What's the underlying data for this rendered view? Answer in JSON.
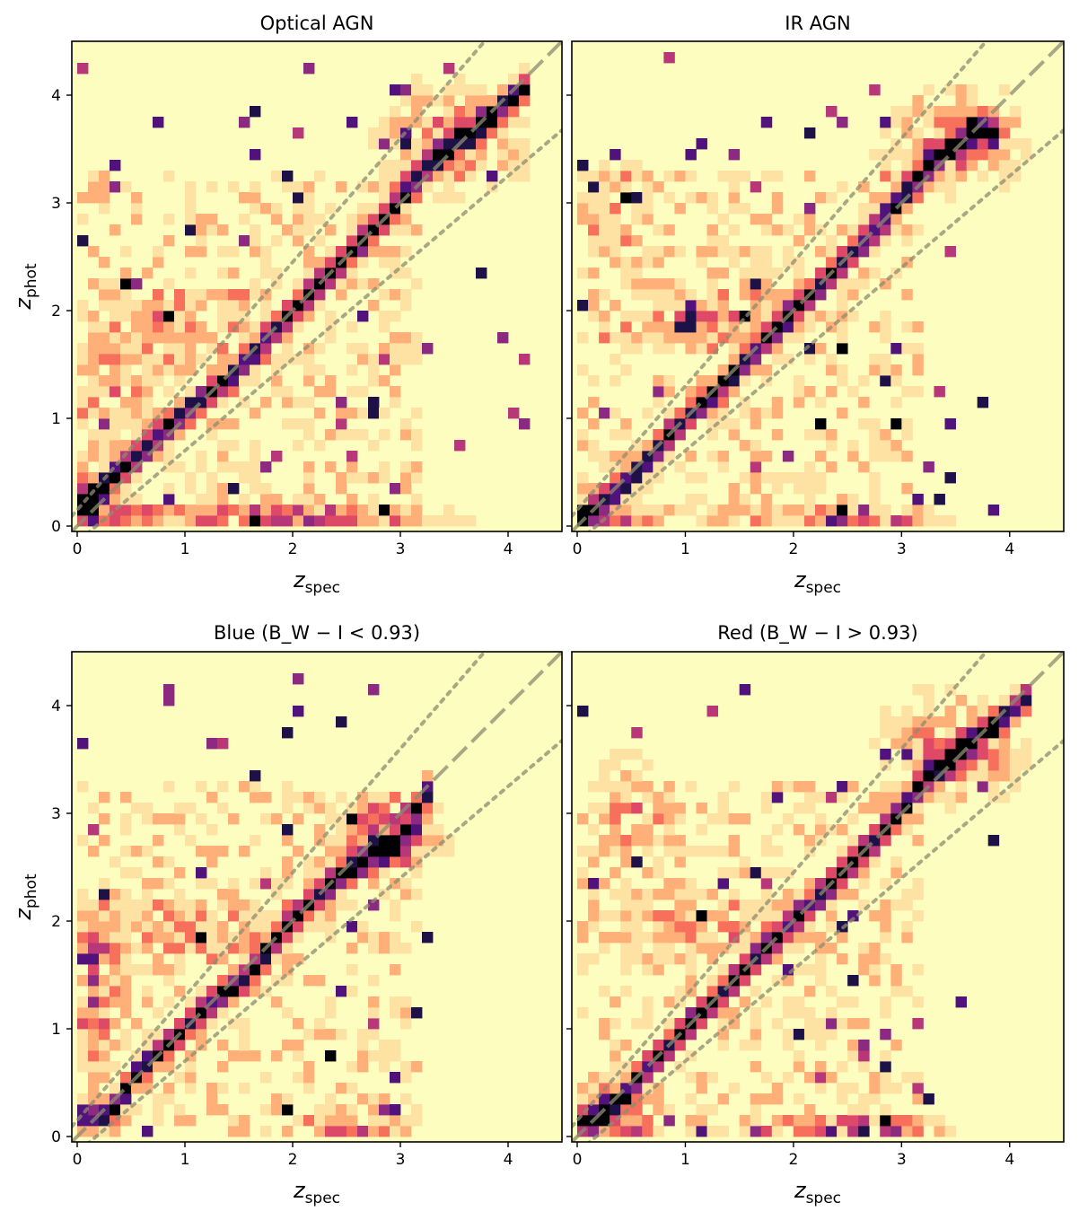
{
  "figure": {
    "shared_xlabel": "z",
    "shared_xlabel_sub": "spec",
    "shared_ylabel": "z",
    "shared_ylabel_sub": "phot",
    "colors": {
      "background": "#fcfdbf",
      "dashed_line": "#8c8c70",
      "dotted_line": "#8c8c70",
      "cmap": [
        "#fcfdbf",
        "#fde2a3",
        "#feb078",
        "#f7705c",
        "#de4968",
        "#b73779",
        "#8c2981",
        "#51127c",
        "#1d1147",
        "#000004"
      ]
    }
  },
  "chart_data": [
    {
      "type": "heatmap",
      "title": "Optical AGN",
      "xlabel": "z_spec",
      "ylabel": "z_phot",
      "xlim": [
        -0.05,
        4.5
      ],
      "ylim": [
        -0.05,
        4.5
      ],
      "xticks": [
        "0",
        "1",
        "2",
        "3",
        "4"
      ],
      "yticks": [
        "0",
        "1",
        "2",
        "3",
        "4"
      ],
      "bin_width": 0.1,
      "reference_lines": {
        "one_to_one": "dashed",
        "outlier_bounds": "dotted"
      },
      "seed": 11,
      "ridge": [
        [
          0.0,
          0.15
        ],
        [
          0.5,
          0.6
        ],
        [
          1.0,
          1.05
        ],
        [
          1.5,
          1.45
        ],
        [
          1.9,
          1.9
        ],
        [
          2.3,
          2.3
        ],
        [
          2.8,
          2.8
        ],
        [
          3.3,
          3.4
        ],
        [
          3.7,
          3.7
        ],
        [
          4.2,
          4.1
        ]
      ],
      "clumps": [
        [
          0.1,
          0.25,
          0.15,
          0.15,
          1.0
        ],
        [
          0.7,
          0.1,
          1.5,
          0.08,
          0.5
        ],
        [
          2.2,
          0.05,
          0.6,
          0.08,
          0.6
        ],
        [
          1.0,
          1.9,
          0.6,
          0.2,
          0.35
        ],
        [
          3.5,
          3.6,
          0.4,
          0.3,
          0.6
        ],
        [
          0.4,
          1.3,
          0.3,
          0.3,
          0.3
        ]
      ]
    },
    {
      "type": "heatmap",
      "title": "IR AGN",
      "xlabel": "z_spec",
      "ylabel": "z_phot",
      "xlim": [
        -0.05,
        4.5
      ],
      "ylim": [
        -0.05,
        4.5
      ],
      "xticks": [
        "0",
        "1",
        "2",
        "3",
        "4"
      ],
      "yticks": [
        "0",
        "1",
        "2",
        "3",
        "4"
      ],
      "bin_width": 0.1,
      "reference_lines": {
        "one_to_one": "dashed",
        "outlier_bounds": "dotted"
      },
      "seed": 23,
      "ridge": [
        [
          0.0,
          0.05
        ],
        [
          0.5,
          0.45
        ],
        [
          1.0,
          1.0
        ],
        [
          1.5,
          1.45
        ],
        [
          1.9,
          1.9
        ],
        [
          2.3,
          2.3
        ],
        [
          2.8,
          2.8
        ],
        [
          3.3,
          3.4
        ],
        [
          3.7,
          3.7
        ],
        [
          3.9,
          3.6
        ]
      ],
      "clumps": [
        [
          0.2,
          0.05,
          0.3,
          0.08,
          1.0
        ],
        [
          2.4,
          0.05,
          0.6,
          0.08,
          0.7
        ],
        [
          1.2,
          1.9,
          0.6,
          0.2,
          0.35
        ],
        [
          3.5,
          3.6,
          0.4,
          0.3,
          0.6
        ],
        [
          0.3,
          3.0,
          0.3,
          0.3,
          0.25
        ]
      ]
    },
    {
      "type": "heatmap",
      "title": "Blue (B_W − I < 0.93)",
      "xlabel": "z_spec",
      "ylabel": "z_phot",
      "xlim": [
        -0.05,
        4.5
      ],
      "ylim": [
        -0.05,
        4.5
      ],
      "xticks": [
        "0",
        "1",
        "2",
        "3",
        "4"
      ],
      "yticks": [
        "0",
        "1",
        "2",
        "3",
        "4"
      ],
      "bin_width": 0.1,
      "reference_lines": {
        "one_to_one": "dashed",
        "outlier_bounds": "dotted"
      },
      "seed": 37,
      "ridge": [
        [
          0.3,
          0.2
        ],
        [
          0.6,
          0.65
        ],
        [
          0.9,
          0.9
        ],
        [
          1.3,
          1.3
        ],
        [
          1.6,
          1.5
        ],
        [
          1.9,
          1.9
        ],
        [
          2.3,
          2.3
        ],
        [
          2.7,
          2.6
        ],
        [
          3.0,
          2.75
        ],
        [
          3.3,
          3.3
        ]
      ],
      "clumps": [
        [
          0.15,
          1.5,
          0.15,
          0.4,
          0.7
        ],
        [
          2.5,
          0.05,
          0.4,
          0.08,
          0.6
        ],
        [
          1.0,
          1.9,
          0.6,
          0.2,
          0.35
        ],
        [
          2.9,
          2.8,
          0.3,
          0.2,
          0.8
        ]
      ]
    },
    {
      "type": "heatmap",
      "title": "Red (B_W − I > 0.93)",
      "xlabel": "z_spec",
      "ylabel": "z_phot",
      "xlim": [
        -0.05,
        4.5
      ],
      "ylim": [
        -0.05,
        4.5
      ],
      "xticks": [
        "0",
        "1",
        "2",
        "3",
        "4"
      ],
      "yticks": [
        "0",
        "1",
        "2",
        "3",
        "4"
      ],
      "bin_width": 0.1,
      "reference_lines": {
        "one_to_one": "dashed",
        "outlier_bounds": "dotted"
      },
      "seed": 53,
      "ridge": [
        [
          0.0,
          0.1
        ],
        [
          0.4,
          0.35
        ],
        [
          0.7,
          0.7
        ],
        [
          1.0,
          1.0
        ],
        [
          1.4,
          1.4
        ],
        [
          1.8,
          1.8
        ],
        [
          2.3,
          2.3
        ],
        [
          2.8,
          2.8
        ],
        [
          3.3,
          3.4
        ],
        [
          3.7,
          3.7
        ],
        [
          4.2,
          4.1
        ]
      ],
      "clumps": [
        [
          0.15,
          0.15,
          0.3,
          0.15,
          1.0
        ],
        [
          2.5,
          0.05,
          0.5,
          0.08,
          0.9
        ],
        [
          1.2,
          1.9,
          0.6,
          0.2,
          0.35
        ],
        [
          3.5,
          3.6,
          0.4,
          0.3,
          0.6
        ],
        [
          0.5,
          3.0,
          0.3,
          0.4,
          0.3
        ]
      ]
    }
  ]
}
